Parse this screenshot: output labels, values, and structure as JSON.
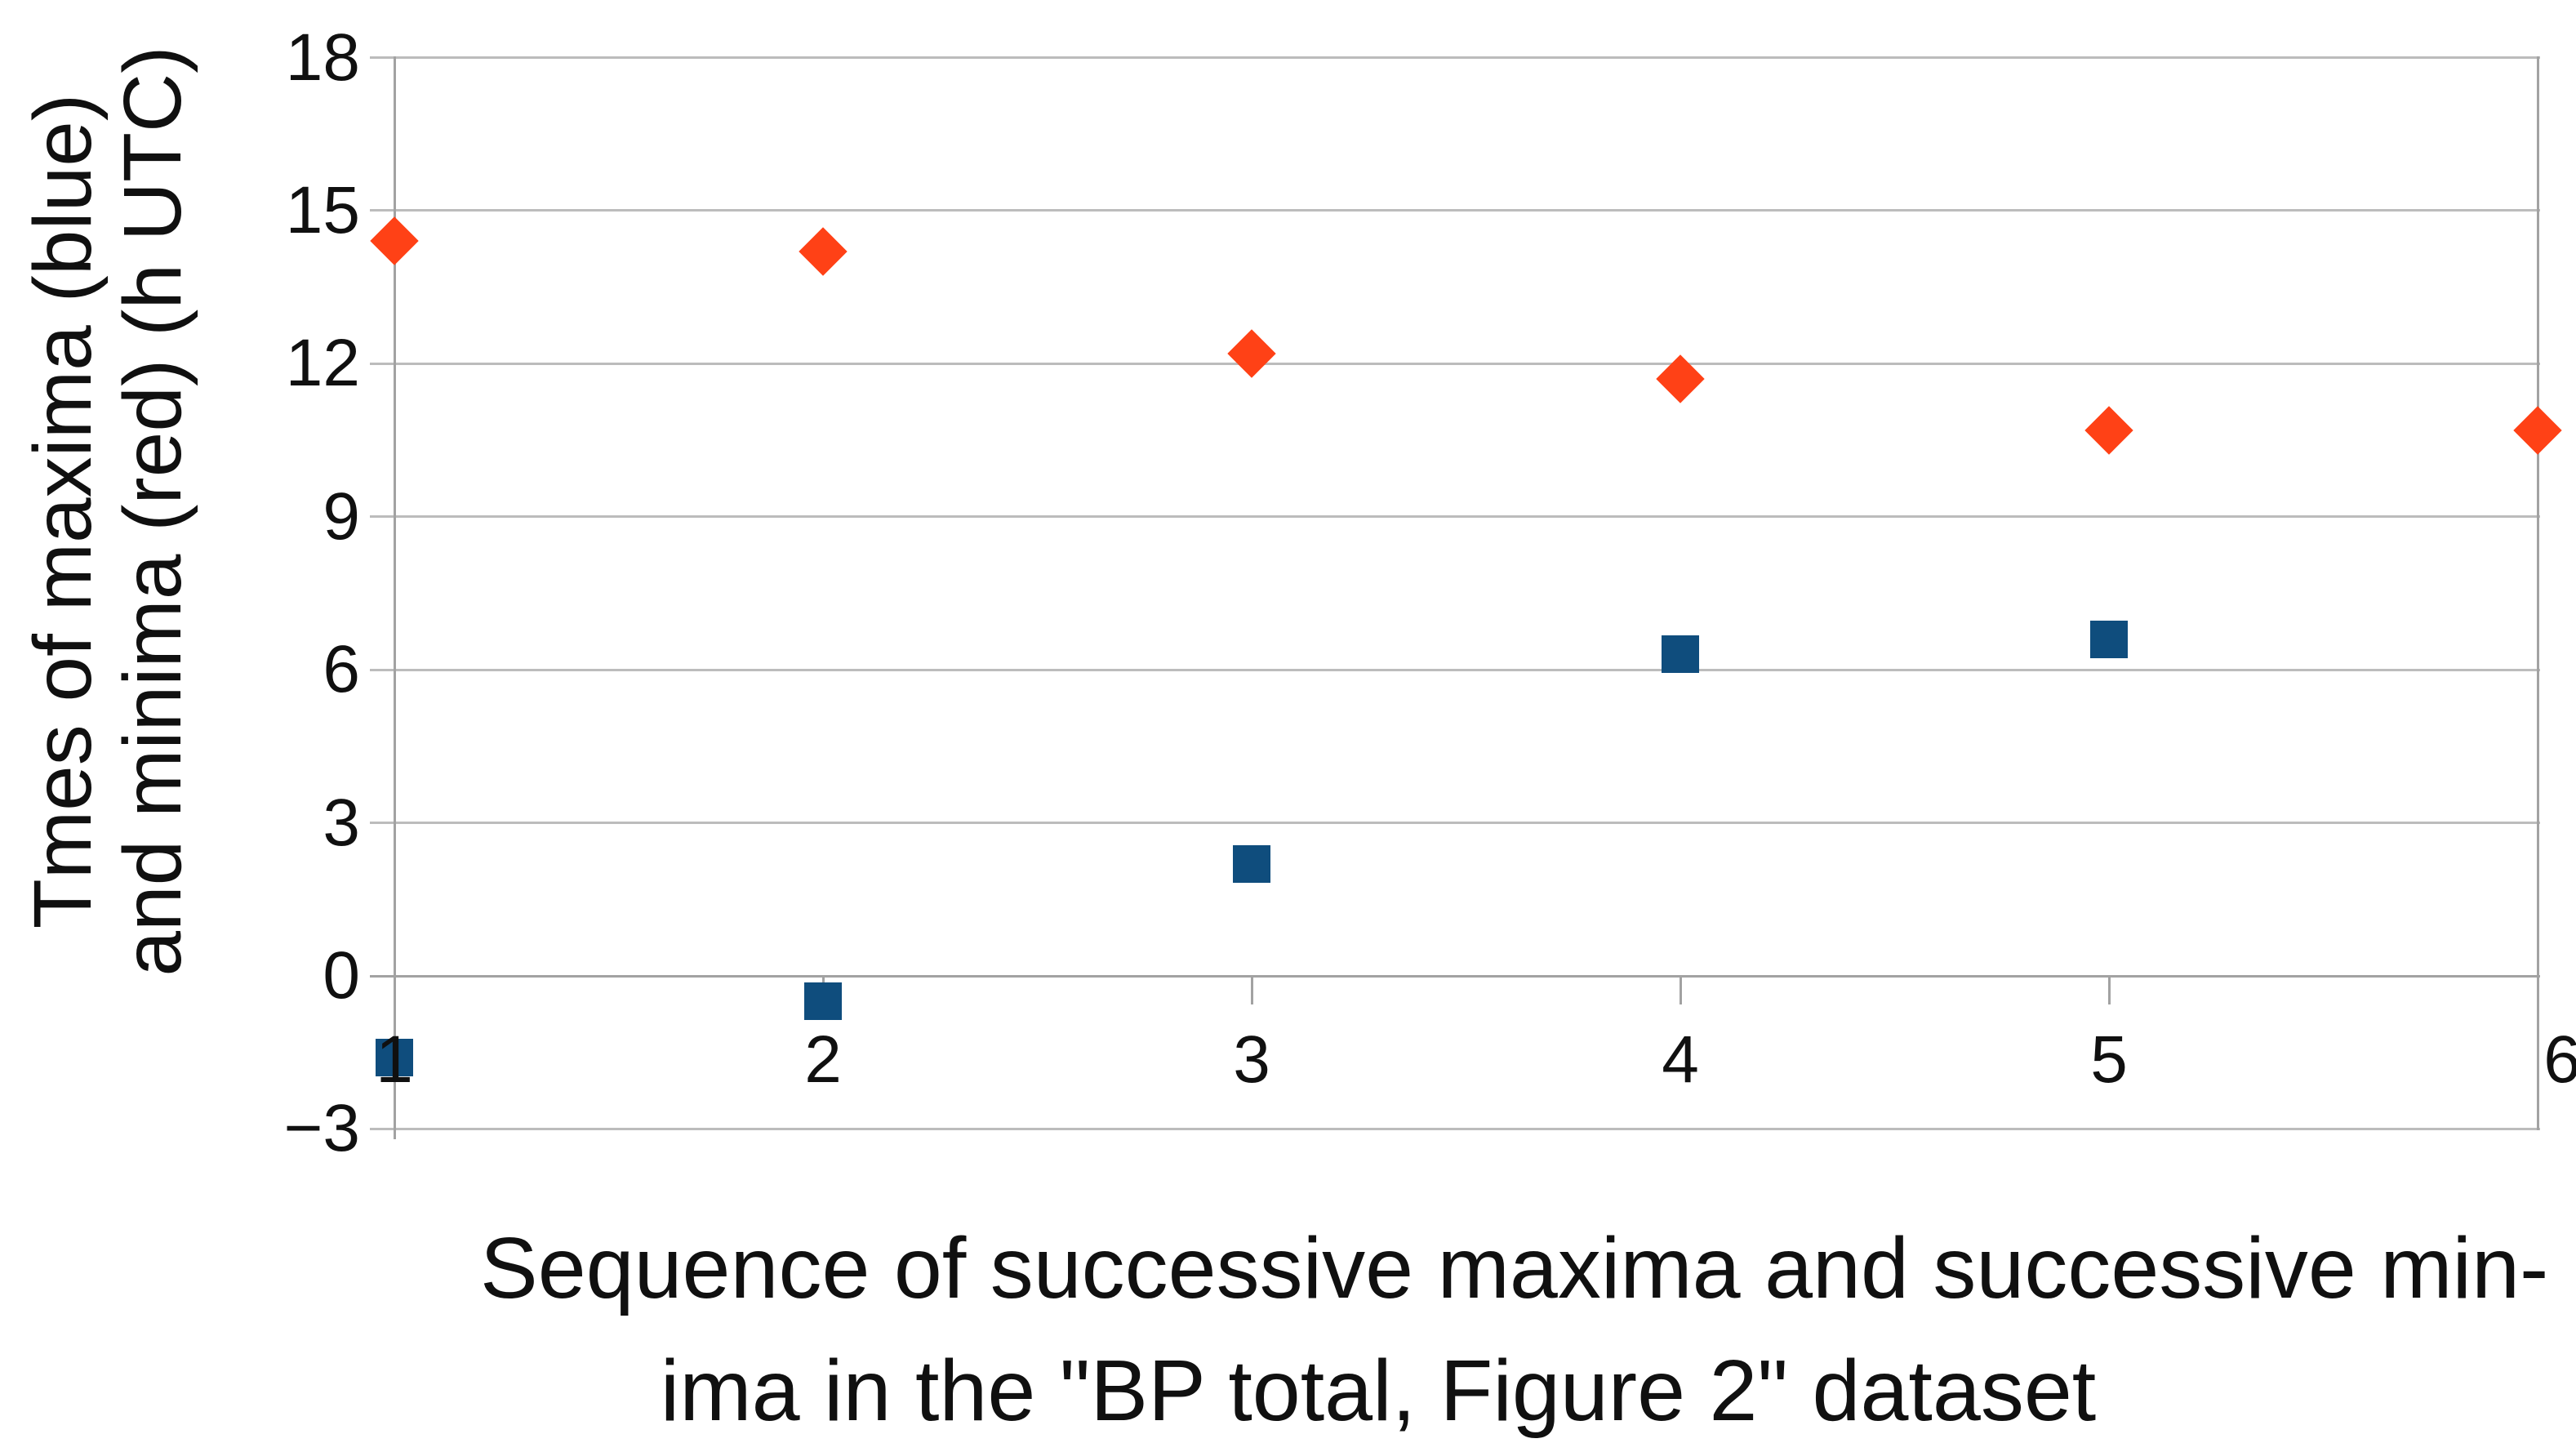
{
  "chart_data": {
    "type": "scatter",
    "title": "",
    "xlabel_lines": [
      "Sequence of successive maxima and successive min-",
      "ima in the \"BP total, Figure 2\" dataset"
    ],
    "ylabel_lines": [
      "Tmes of maxima (blue)",
      "and minima (red) (h UTC)"
    ],
    "xlim": [
      1,
      6
    ],
    "ylim": [
      -3,
      18
    ],
    "x_ticks": [
      "1",
      "2",
      "3",
      "4",
      "5",
      "6"
    ],
    "y_ticks": [
      "18",
      "15",
      "12",
      "9",
      "6",
      "3",
      "0",
      "−3"
    ],
    "y_tick_values": [
      18,
      15,
      12,
      9,
      6,
      3,
      0,
      -3
    ],
    "grid": "horizontal gridlines on, legend off, x-axis crosses at y=0",
    "series": [
      {
        "name": "maxima (blue)",
        "marker": "square",
        "color": "#0f4d7d",
        "points": [
          {
            "x": 1,
            "y": -1.6
          },
          {
            "x": 2,
            "y": -0.5
          },
          {
            "x": 3,
            "y": 2.2
          },
          {
            "x": 4,
            "y": 6.3
          },
          {
            "x": 5,
            "y": 6.6
          }
        ]
      },
      {
        "name": "minima (red)",
        "marker": "diamond",
        "color": "#ff4116",
        "points": [
          {
            "x": 1,
            "y": 14.4
          },
          {
            "x": 2,
            "y": 14.2
          },
          {
            "x": 3,
            "y": 12.2
          },
          {
            "x": 4,
            "y": 11.7
          },
          {
            "x": 5,
            "y": 10.7
          },
          {
            "x": 6,
            "y": 10.7
          }
        ]
      }
    ],
    "colors": {
      "gridline": "#bcbcbc",
      "axis": "#a2a2a2",
      "text": "#101010",
      "background": "#ffffff"
    }
  }
}
